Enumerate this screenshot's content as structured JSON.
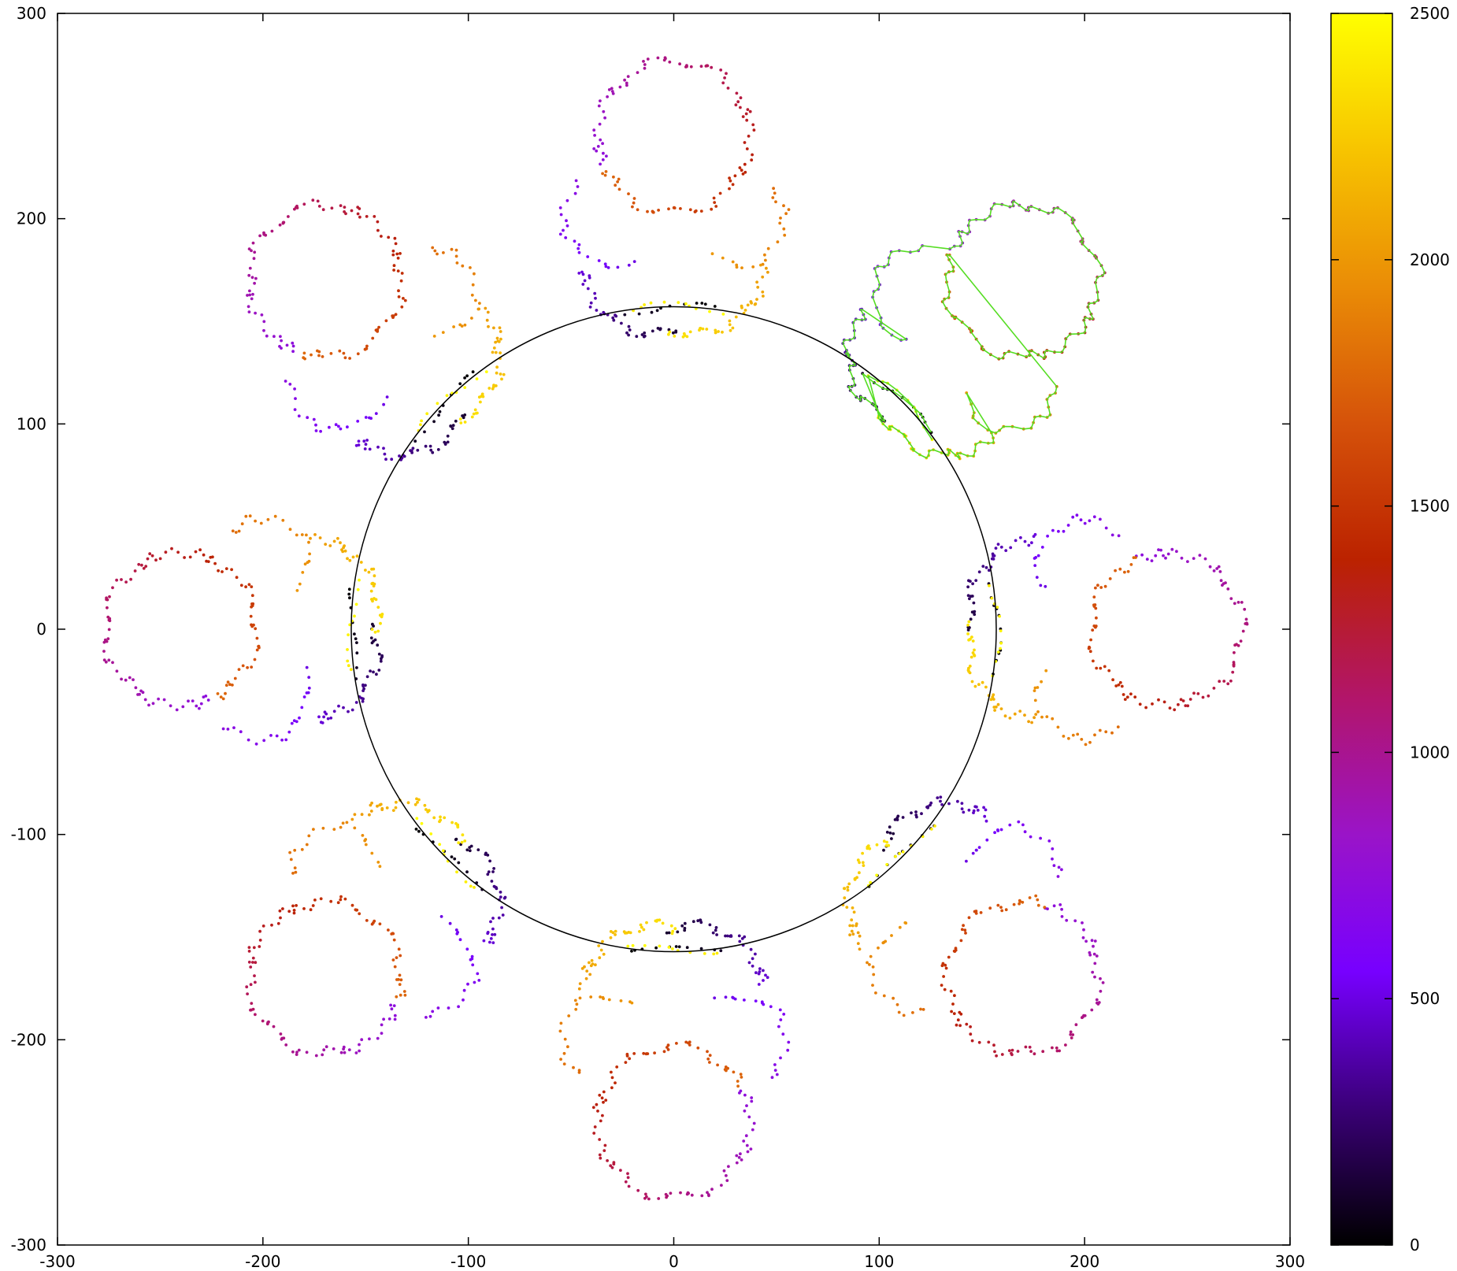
{
  "chart_data": {
    "type": "scatter",
    "title": "",
    "xlabel": "",
    "ylabel": "",
    "xlim": [
      -300,
      300
    ],
    "ylim": [
      -300,
      300
    ],
    "x_ticks": [
      -300,
      -200,
      -100,
      0,
      100,
      200,
      300
    ],
    "y_ticks": [
      -300,
      -200,
      -100,
      0,
      100,
      200,
      300
    ],
    "grid": false,
    "legend": "none",
    "colorbar": {
      "range": [
        0,
        2500
      ],
      "ticks": [
        0,
        500,
        1000,
        1500,
        2000,
        2500
      ],
      "palette": [
        "#000000",
        "#3a0077",
        "#7700ff",
        "#9a14c8",
        "#b2156a",
        "#bb2200",
        "#d5520a",
        "#ea8c06",
        "#f7c400",
        "#ffff00"
      ]
    },
    "circle": {
      "center": [
        0,
        0
      ],
      "radius": 157
    },
    "arms": {
      "count": 8,
      "points_per_arm": 2500,
      "point_index_range": [
        0,
        2500
      ]
    },
    "highlighted_arm": {
      "angle_deg": 45,
      "line_color": "#55dd22",
      "marker_color": "#c2185b"
    }
  }
}
